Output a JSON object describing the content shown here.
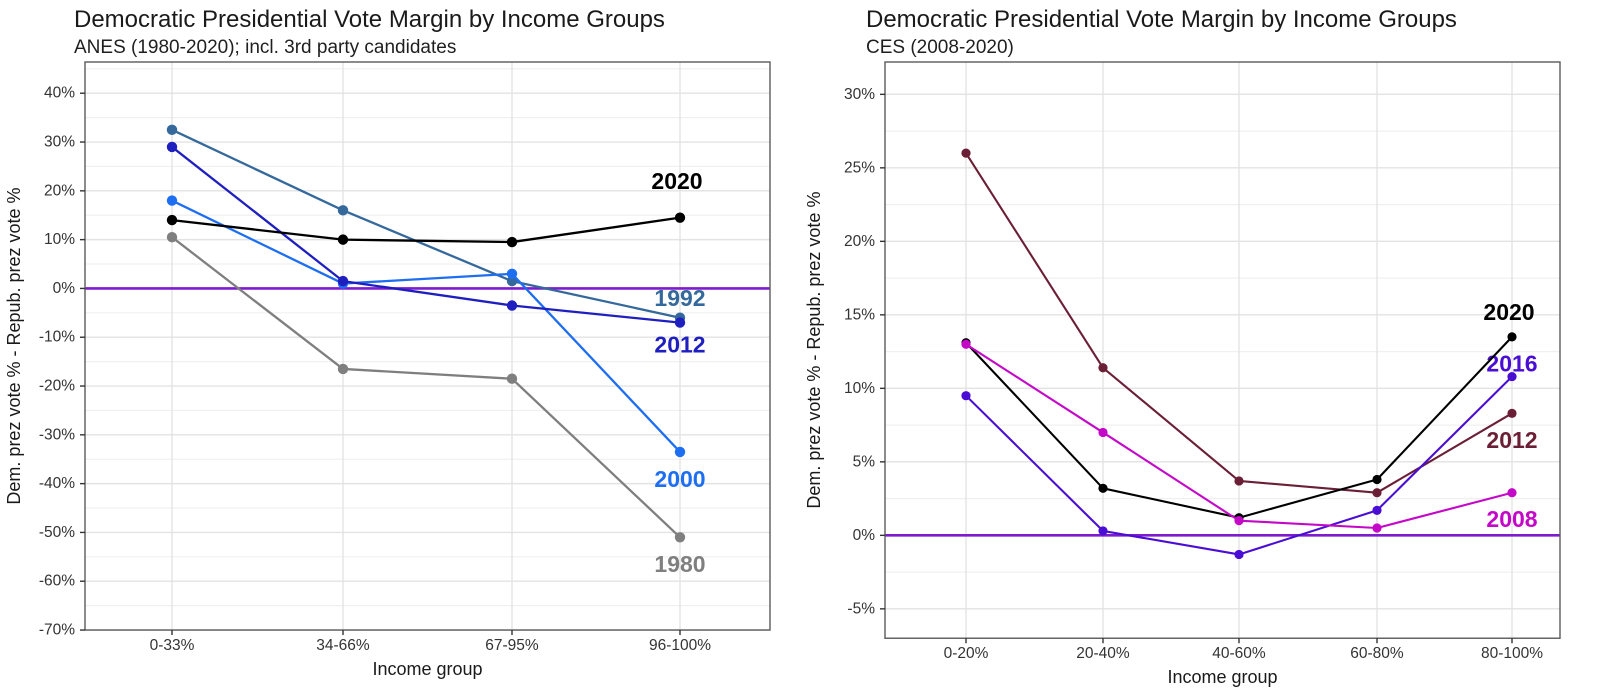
{
  "page": {
    "background": "#ffffff",
    "axis_text_color": "#333333",
    "title_color": "#1a1a1a",
    "grid_major_color": "#e3e3e3",
    "grid_minor_color": "#f0f0f0",
    "panel_border_color": "#5a5a5a"
  },
  "chart_data": [
    {
      "type": "line",
      "title": "Democratic Presidential Vote Margin by Income Groups",
      "subtitle": "ANES (1980-2020); incl. 3rd party candidates",
      "xlabel": "Income group",
      "ylabel": "Dem. prez vote % - Repub. prez vote %",
      "categories": [
        "0-33%",
        "34-66%",
        "67-95%",
        "96-100%"
      ],
      "yticks": [
        40,
        30,
        20,
        10,
        0,
        -10,
        -20,
        -30,
        -40,
        -50,
        -60,
        -70
      ],
      "minor_step": 5,
      "ylim_top": 46.4,
      "ylim_bottom": -70,
      "zero_line": {
        "value": 0,
        "color": "#7d1bce"
      },
      "grid": true,
      "legend": "inline-colored-year-labels",
      "series": [
        {
          "name": "1980",
          "color": "#7f7f7f",
          "values": [
            10.5,
            -16.5,
            -18.5,
            -51
          ],
          "label_x": 3,
          "label_y": -56.5
        },
        {
          "name": "1992",
          "color": "#35699c",
          "values": [
            32.5,
            16,
            1.5,
            -6
          ],
          "label_x": 3,
          "label_y": -2
        },
        {
          "name": "2000",
          "color": "#1e6ef2",
          "values": [
            18,
            1,
            3,
            -33.5
          ],
          "label_x": 3,
          "label_y": -39
        },
        {
          "name": "2012",
          "color": "#1f1fc0",
          "values": [
            29,
            1.5,
            -3.5,
            -7
          ],
          "label_x": 3,
          "label_y": -11.5
        },
        {
          "name": "2020",
          "color": "#000000",
          "values": [
            14,
            10,
            9.5,
            14.5
          ],
          "label_x": 3,
          "label_y": 22
        }
      ]
    },
    {
      "type": "line",
      "title": "Democratic Presidential Vote Margin by Income Groups",
      "subtitle": "CES (2008-2020)",
      "xlabel": "Income group",
      "ylabel": "Dem. prez vote % - Repub. prez vote %",
      "categories": [
        "0-20%",
        "20-40%",
        "40-60%",
        "60-80%",
        "80-100%"
      ],
      "yticks": [
        30,
        25,
        20,
        15,
        10,
        5,
        0,
        -5
      ],
      "minor_step": 2.5,
      "ylim_top": 32.2,
      "ylim_bottom": -7,
      "zero_line": {
        "value": 0,
        "color": "#7d1bce"
      },
      "grid": true,
      "legend": "inline-colored-year-labels",
      "series": [
        {
          "name": "2012",
          "color": "#6b1f36",
          "values": [
            26,
            11.4,
            3.7,
            2.9,
            8.3
          ],
          "label_x": 4,
          "label_y": 6.5
        },
        {
          "name": "2016",
          "color": "#4a0dd3",
          "values": [
            9.5,
            0.3,
            -1.3,
            1.7,
            10.8
          ],
          "label_x": 4,
          "label_y": 11.7
        },
        {
          "name": "2020",
          "color": "#000000",
          "values": [
            13.1,
            3.2,
            1.2,
            3.8,
            13.5
          ],
          "label_x": 4,
          "label_y": 15.2
        },
        {
          "name": "2008",
          "color": "#c408c8",
          "values": [
            13,
            7,
            1,
            0.5,
            2.9
          ],
          "label_x": 4,
          "label_y": 1.1
        }
      ]
    }
  ]
}
